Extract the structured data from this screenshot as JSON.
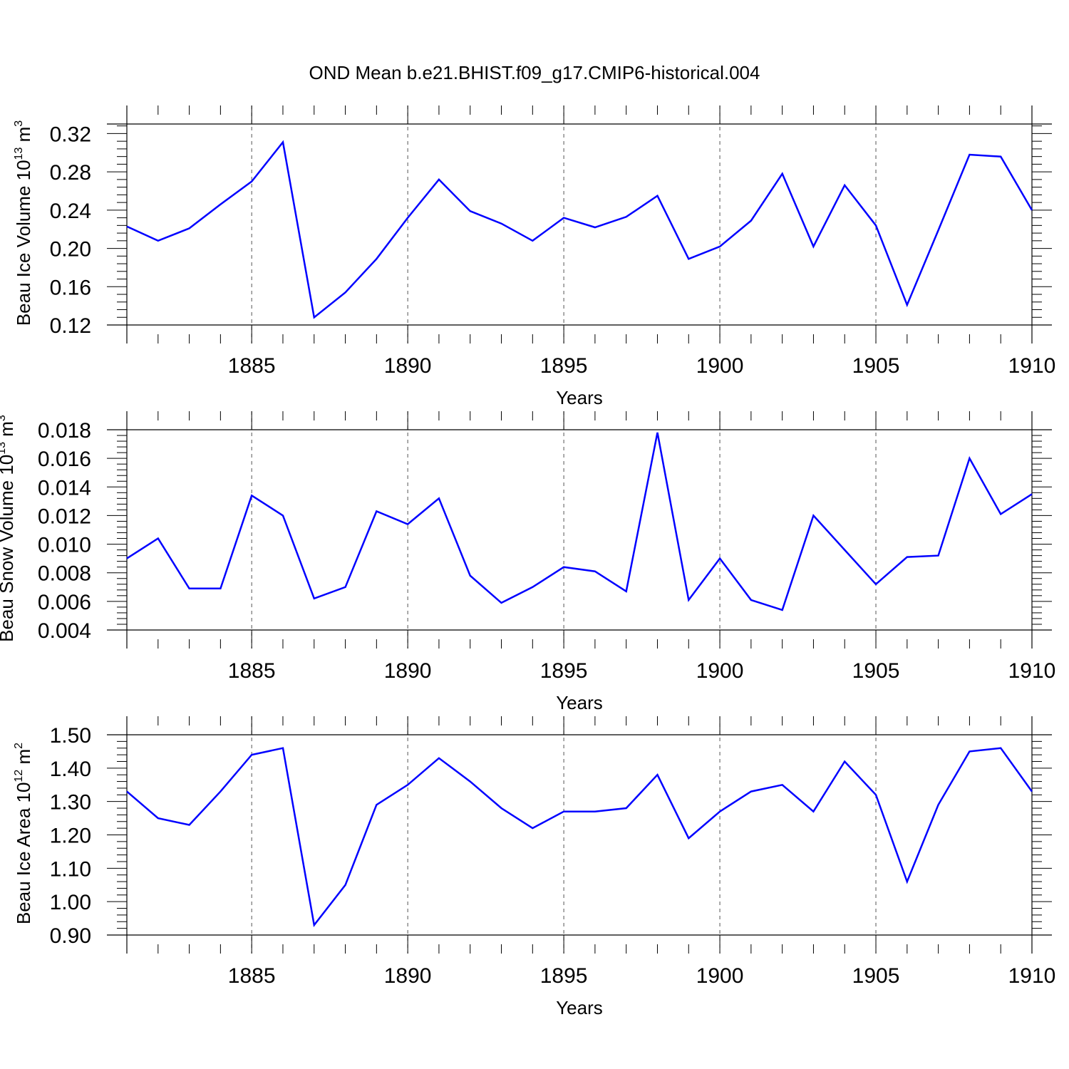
{
  "title": "OND Mean b.e21.BHIST.f09_g17.CMIP6-historical.004",
  "line_color": "#0000ff",
  "chart_data": [
    {
      "type": "line",
      "xlabel": "Years",
      "ylabel": {
        "text": "Beau Ice Volume 10",
        "sup": "13",
        "after": " m",
        "sup2": "3"
      },
      "xlim": [
        1881,
        1910
      ],
      "ylim": [
        0.12,
        0.33
      ],
      "xticks": [
        1885,
        1890,
        1895,
        1900,
        1905,
        1910
      ],
      "yticks": [
        0.12,
        0.16,
        0.2,
        0.24,
        0.28,
        0.32
      ],
      "ytick_labels": [
        "0.12",
        "0.16",
        "0.20",
        "0.24",
        "0.28",
        "0.32"
      ],
      "grid": "dashed vertical at major x ticks",
      "x": [
        1881,
        1882,
        1883,
        1884,
        1885,
        1886,
        1887,
        1888,
        1889,
        1890,
        1891,
        1892,
        1893,
        1894,
        1895,
        1896,
        1897,
        1898,
        1899,
        1900,
        1901,
        1902,
        1903,
        1904,
        1905,
        1906,
        1907,
        1908,
        1909,
        1910
      ],
      "values": [
        0.223,
        0.208,
        0.221,
        0.246,
        0.27,
        0.311,
        0.128,
        0.154,
        0.189,
        0.232,
        0.272,
        0.239,
        0.226,
        0.208,
        0.232,
        0.222,
        0.233,
        0.255,
        0.189,
        0.202,
        0.229,
        0.278,
        0.202,
        0.266,
        0.224,
        0.141,
        0.219,
        0.298,
        0.296,
        0.24
      ]
    },
    {
      "type": "line",
      "xlabel": "Years",
      "ylabel": {
        "text": "Beau Snow Volume 10",
        "sup": "13",
        "after": " m",
        "sup2": "3"
      },
      "xlim": [
        1881,
        1910
      ],
      "ylim": [
        0.004,
        0.018
      ],
      "xticks": [
        1885,
        1890,
        1895,
        1900,
        1905,
        1910
      ],
      "yticks": [
        0.004,
        0.006,
        0.008,
        0.01,
        0.012,
        0.014,
        0.016,
        0.018
      ],
      "ytick_labels": [
        "0.004",
        "0.006",
        "0.008",
        "0.010",
        "0.012",
        "0.014",
        "0.016",
        "0.018"
      ],
      "grid": "dashed vertical at major x ticks",
      "x": [
        1881,
        1882,
        1883,
        1884,
        1885,
        1886,
        1887,
        1888,
        1889,
        1890,
        1891,
        1892,
        1893,
        1894,
        1895,
        1896,
        1897,
        1898,
        1899,
        1900,
        1901,
        1902,
        1903,
        1904,
        1905,
        1906,
        1907,
        1908,
        1909,
        1910
      ],
      "values": [
        0.009,
        0.0104,
        0.0069,
        0.0069,
        0.0134,
        0.012,
        0.0062,
        0.007,
        0.0123,
        0.0114,
        0.0132,
        0.0078,
        0.0059,
        0.007,
        0.0084,
        0.0081,
        0.0067,
        0.0178,
        0.0061,
        0.009,
        0.0061,
        0.0054,
        0.012,
        0.0096,
        0.0072,
        0.0091,
        0.0092,
        0.016,
        0.0121,
        0.0135
      ]
    },
    {
      "type": "line",
      "xlabel": "Years",
      "ylabel": {
        "text": "Beau Ice Area 10",
        "sup": "12",
        "after": " m",
        "sup2": "2"
      },
      "xlim": [
        1881,
        1910
      ],
      "ylim": [
        0.9,
        1.5
      ],
      "xticks": [
        1885,
        1890,
        1895,
        1900,
        1905,
        1910
      ],
      "yticks": [
        0.9,
        1.0,
        1.1,
        1.2,
        1.3,
        1.4,
        1.5
      ],
      "ytick_labels": [
        "0.90",
        "1.00",
        "1.10",
        "1.20",
        "1.30",
        "1.40",
        "1.50"
      ],
      "grid": "dashed vertical at major x ticks",
      "x": [
        1881,
        1882,
        1883,
        1884,
        1885,
        1886,
        1887,
        1888,
        1889,
        1890,
        1891,
        1892,
        1893,
        1894,
        1895,
        1896,
        1897,
        1898,
        1899,
        1900,
        1901,
        1902,
        1903,
        1904,
        1905,
        1906,
        1907,
        1908,
        1909,
        1910
      ],
      "values": [
        1.33,
        1.25,
        1.23,
        1.33,
        1.44,
        1.46,
        0.93,
        1.05,
        1.29,
        1.35,
        1.43,
        1.36,
        1.28,
        1.22,
        1.27,
        1.27,
        1.28,
        1.38,
        1.19,
        1.27,
        1.33,
        1.35,
        1.27,
        1.42,
        1.32,
        1.06,
        1.29,
        1.45,
        1.46,
        1.33
      ]
    }
  ]
}
